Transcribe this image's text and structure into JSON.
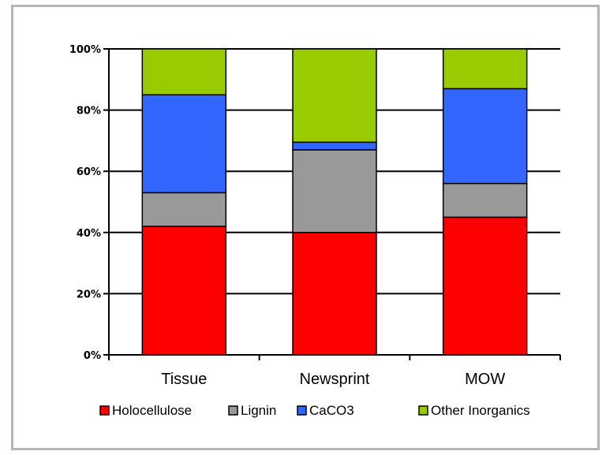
{
  "chart_data": {
    "type": "bar",
    "stacked": true,
    "percent": true,
    "categories": [
      "Tissue",
      "Newsprint",
      "MOW"
    ],
    "series": [
      {
        "name": "Holocellulose",
        "color": "#ff0000",
        "values": [
          42,
          40,
          45
        ]
      },
      {
        "name": "Lignin",
        "color": "#999999",
        "values": [
          11,
          27,
          11
        ]
      },
      {
        "name": "CaCO3",
        "color": "#3366ff",
        "values": [
          32,
          2.5,
          31
        ]
      },
      {
        "name": "Other Inorganics",
        "color": "#99cc00",
        "values": [
          15,
          30.5,
          13
        ]
      }
    ],
    "ylim": [
      0,
      100
    ],
    "yticks": [
      0,
      20,
      40,
      60,
      80,
      100
    ],
    "ytick_labels": [
      "0%",
      "20%",
      "40%",
      "60%",
      "80%",
      "100%"
    ],
    "grid": true,
    "legend_position": "bottom"
  }
}
